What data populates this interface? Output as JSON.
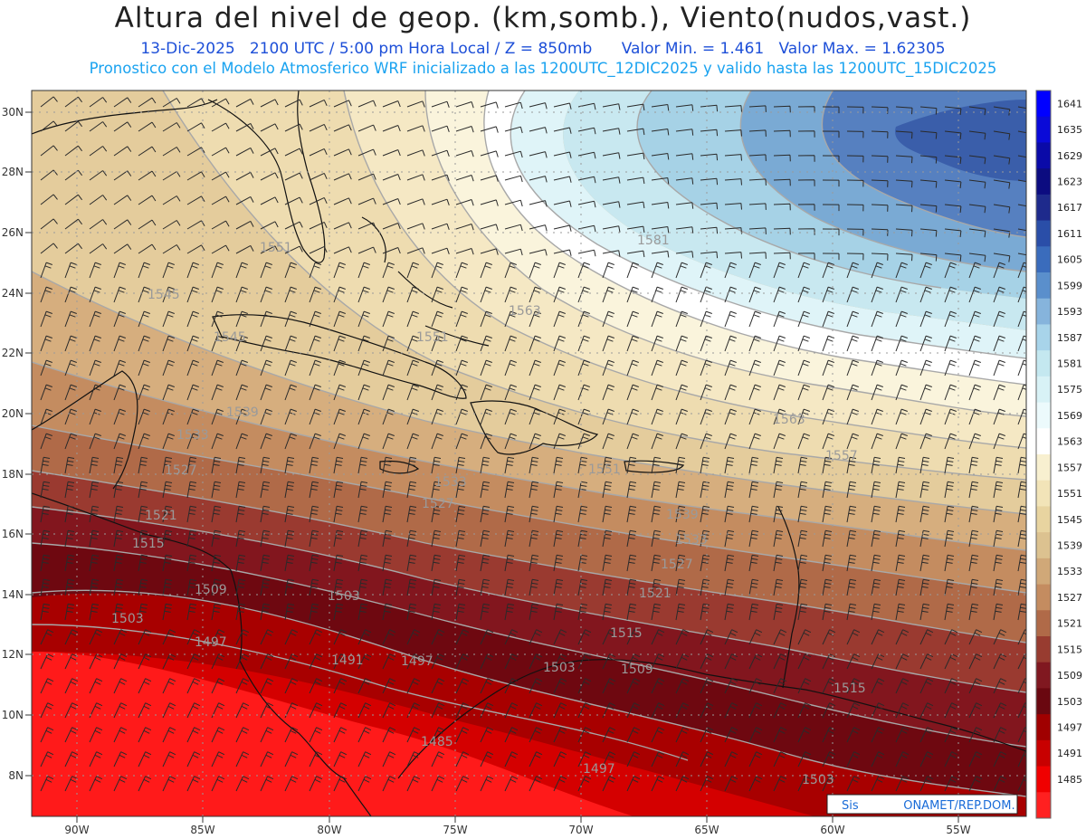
{
  "header": {
    "title": "Altura del nivel de geop. (km,somb.), Viento(nudos,vast.)",
    "date": "13-Dic-2025",
    "time": "2100 UTC / 5:00 pm Hora Local / Z = 850mb",
    "vmin": "Valor Min. = 1.461",
    "vmax": "Valor Max. = 1.62305",
    "model_line": "Pronostico con el Modelo Atmosferico WRF inicializado a las 1200UTC_12DIC2025 y valido hasta las  1200UTC_15DIC2025"
  },
  "axes": {
    "lon_labels": [
      "90W",
      "85W",
      "80W",
      "75W",
      "70W",
      "65W",
      "60W",
      "55W"
    ],
    "lat_labels": [
      "30N",
      "28N",
      "26N",
      "24N",
      "22N",
      "20N",
      "18N",
      "16N",
      "14N",
      "12N",
      "10N",
      "8N"
    ]
  },
  "colorbar": {
    "levels": [
      "1641",
      "1635",
      "1629",
      "1623",
      "1617",
      "1611",
      "1605",
      "1599",
      "1593",
      "1587",
      "1581",
      "1575",
      "1569",
      "1563",
      "1557",
      "1551",
      "1545",
      "1539",
      "1533",
      "1527",
      "1521",
      "1515",
      "1509",
      "1503",
      "1497",
      "1491",
      "1485"
    ],
    "colors": [
      "#0000ff",
      "#0a0ad8",
      "#0a0aa8",
      "#0c0c80",
      "#1e2a8c",
      "#2a4ea8",
      "#3a6cbc",
      "#5a8fcc",
      "#86b4dc",
      "#a8d4ea",
      "#c4e8f0",
      "#d8f2f6",
      "#ecfafc",
      "#ffffff",
      "#f8f0d0",
      "#f2e4b8",
      "#e8d4a0",
      "#dcc290",
      "#d0a878",
      "#c48c60",
      "#b06a48",
      "#983c30",
      "#801820",
      "#6a0810",
      "#a00000",
      "#c80000",
      "#f00000",
      "#ff2020"
    ]
  },
  "contour_labels": [
    "1551",
    "1545",
    "1545",
    "1563",
    "1551",
    "1581",
    "1539",
    "1533",
    "1527",
    "1563",
    "1557",
    "1533",
    "1527",
    "1521",
    "1515",
    "1551",
    "1539",
    "1533",
    "1527",
    "1521",
    "1509",
    "1503",
    "1503",
    "1497",
    "1491",
    "1497",
    "1515",
    "1509",
    "1503",
    "1485",
    "1497",
    "1503",
    "1515"
  ],
  "credit": {
    "text": "Sis            ONAMET/REP.DOM."
  }
}
